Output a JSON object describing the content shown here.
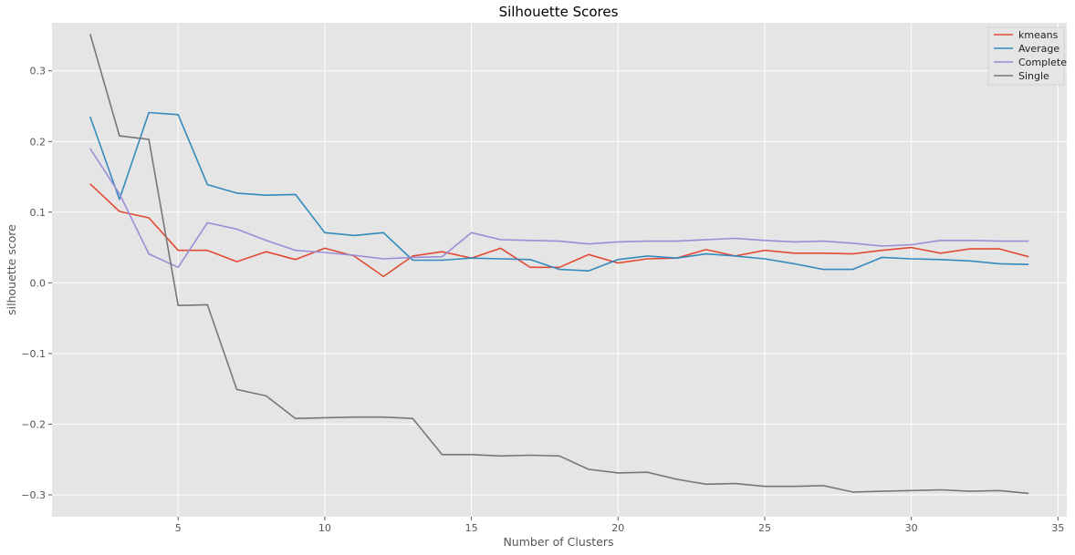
{
  "chart_data": {
    "type": "line",
    "title": "Silhouette Scores",
    "xlabel": "Number of Clusters",
    "ylabel": "silhouette score",
    "xlim": [
      0.7,
      35.3
    ],
    "ylim": [
      -0.331,
      0.368
    ],
    "xticks": [
      5,
      10,
      15,
      20,
      25,
      30,
      35
    ],
    "yticks": [
      -0.3,
      -0.2,
      -0.1,
      0.0,
      0.1,
      0.2,
      0.3
    ],
    "ytick_labels": [
      "−0.3",
      "−0.2",
      "−0.1",
      "0.0",
      "0.1",
      "0.2",
      "0.3"
    ],
    "grid": true,
    "legend_position": "top-right",
    "x": [
      2,
      3,
      4,
      5,
      6,
      7,
      8,
      9,
      10,
      11,
      12,
      13,
      14,
      15,
      16,
      17,
      18,
      19,
      20,
      21,
      22,
      23,
      24,
      25,
      26,
      27,
      28,
      29,
      30,
      31,
      32,
      33,
      34
    ],
    "series": [
      {
        "name": "kmeans",
        "color": "#E24A33",
        "values": [
          0.14,
          0.101,
          0.092,
          0.046,
          0.046,
          0.03,
          0.044,
          0.033,
          0.049,
          0.038,
          0.009,
          0.038,
          0.044,
          0.035,
          0.049,
          0.022,
          0.022,
          0.04,
          0.028,
          0.034,
          0.035,
          0.047,
          0.038,
          0.046,
          0.042,
          0.042,
          0.041,
          0.046,
          0.05,
          0.042,
          0.048,
          0.048,
          0.037
        ]
      },
      {
        "name": "Average",
        "color": "#348ABD",
        "values": [
          0.235,
          0.118,
          0.241,
          0.238,
          0.139,
          0.127,
          0.124,
          0.125,
          0.071,
          0.067,
          0.071,
          0.032,
          0.032,
          0.035,
          0.034,
          0.033,
          0.019,
          0.017,
          0.033,
          0.038,
          0.035,
          0.041,
          0.038,
          0.034,
          0.027,
          0.019,
          0.019,
          0.036,
          0.034,
          0.033,
          0.031,
          0.027,
          0.026
        ]
      },
      {
        "name": "Complete",
        "color": "#988ED5",
        "values": [
          0.19,
          0.126,
          0.041,
          0.022,
          0.085,
          0.076,
          0.06,
          0.046,
          0.043,
          0.039,
          0.034,
          0.036,
          0.037,
          0.071,
          0.061,
          0.06,
          0.059,
          0.055,
          0.058,
          0.059,
          0.059,
          0.061,
          0.063,
          0.06,
          0.058,
          0.059,
          0.056,
          0.052,
          0.054,
          0.06,
          0.06,
          0.059,
          0.059
        ]
      },
      {
        "name": "Single",
        "color": "#777777",
        "values": [
          0.352,
          0.208,
          0.203,
          -0.032,
          -0.031,
          -0.151,
          -0.16,
          -0.192,
          -0.191,
          -0.19,
          -0.19,
          -0.192,
          -0.243,
          -0.243,
          -0.245,
          -0.244,
          -0.245,
          -0.264,
          -0.269,
          -0.268,
          -0.278,
          -0.285,
          -0.284,
          -0.288,
          -0.288,
          -0.287,
          -0.296,
          -0.295,
          -0.294,
          -0.293,
          -0.295,
          -0.294,
          -0.298
        ]
      }
    ]
  }
}
